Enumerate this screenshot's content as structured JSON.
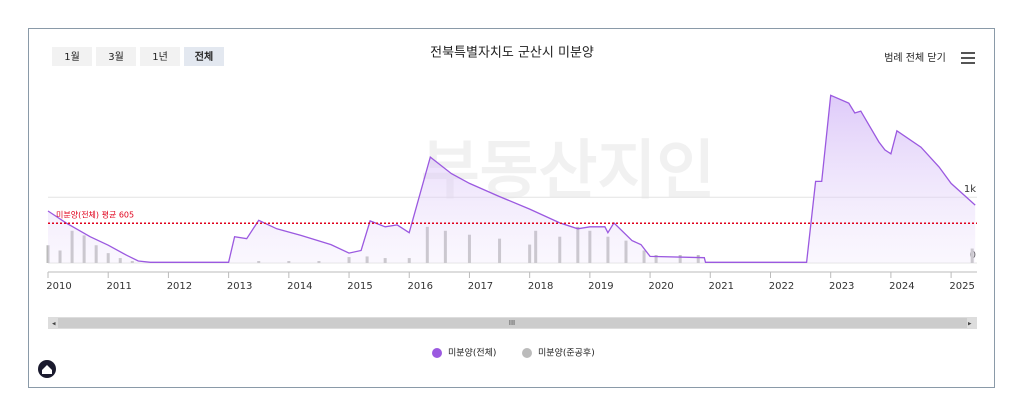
{
  "range_buttons": [
    "1월",
    "3월",
    "1년",
    "전체"
  ],
  "legend_toggle": "범례 전체 닫기",
  "scrollbar_grip": "III",
  "watermark": "부동산지인",
  "chart_data": {
    "type": "line",
    "title": "전북특별자치도 군산시 미분양",
    "xlim": [
      2010,
      2025.43
    ],
    "xticks": [
      2010,
      2011,
      2012,
      2013,
      2014,
      2015,
      2016,
      2017,
      2018,
      2019,
      2020,
      2021,
      2022,
      2023,
      2024,
      2025
    ],
    "ylim": [
      0,
      2600
    ],
    "yticks": [
      0,
      {
        "value": 1000,
        "label": "1k"
      }
    ],
    "grid": true,
    "annotation": {
      "label": "미분양(전체) 평균 605",
      "value": 605,
      "color": "#e0001b"
    },
    "series": [
      {
        "name": "미분양(전체)",
        "color": "#9b59e0",
        "x": [
          2010,
          2010.3,
          2010.7,
          2011,
          2011.3,
          2011.5,
          2011.7,
          2013,
          2013.1,
          2013.3,
          2013.5,
          2013.8,
          2014.2,
          2014.7,
          2015,
          2015.2,
          2015.35,
          2015.6,
          2015.8,
          2016,
          2016.35,
          2016.7,
          2017,
          2017.5,
          2018,
          2018.5,
          2018.8,
          2019,
          2019.25,
          2019.3,
          2019.4,
          2019.7,
          2019.85,
          2020,
          2020.9,
          2020.92,
          2022.6,
          2022.75,
          2022.85,
          2023,
          2023.3,
          2023.4,
          2023.5,
          2023.8,
          2023.9,
          2024,
          2024.1,
          2024.5,
          2024.8,
          2025,
          2025.4
        ],
        "values": [
          790,
          610,
          400,
          270,
          120,
          30,
          10,
          10,
          400,
          370,
          650,
          520,
          420,
          280,
          150,
          190,
          640,
          550,
          580,
          460,
          1610,
          1360,
          1210,
          1010,
          820,
          610,
          520,
          550,
          550,
          460,
          610,
          340,
          280,
          100,
          80,
          10,
          10,
          1240,
          1240,
          2550,
          2430,
          2280,
          2310,
          1840,
          1720,
          1660,
          2010,
          1760,
          1460,
          1210,
          880
        ]
      },
      {
        "name": "미분양(준공후)",
        "color": "#bbbbbb",
        "x": [
          2010,
          2010.2,
          2010.4,
          2010.6,
          2010.8,
          2011,
          2011.2,
          2011.4,
          2013.5,
          2014,
          2014.5,
          2015,
          2015.3,
          2015.6,
          2016,
          2016.3,
          2016.6,
          2017,
          2017.5,
          2018,
          2018.1,
          2018.5,
          2018.8,
          2019,
          2019.3,
          2019.6,
          2019.9,
          2020.1,
          2020.5,
          2020.8,
          2025.35
        ],
        "values": [
          270,
          190,
          490,
          420,
          270,
          150,
          75,
          30,
          30,
          30,
          30,
          90,
          100,
          75,
          75,
          550,
          490,
          430,
          370,
          280,
          490,
          400,
          550,
          490,
          400,
          340,
          190,
          120,
          120,
          120,
          220
        ]
      }
    ]
  }
}
